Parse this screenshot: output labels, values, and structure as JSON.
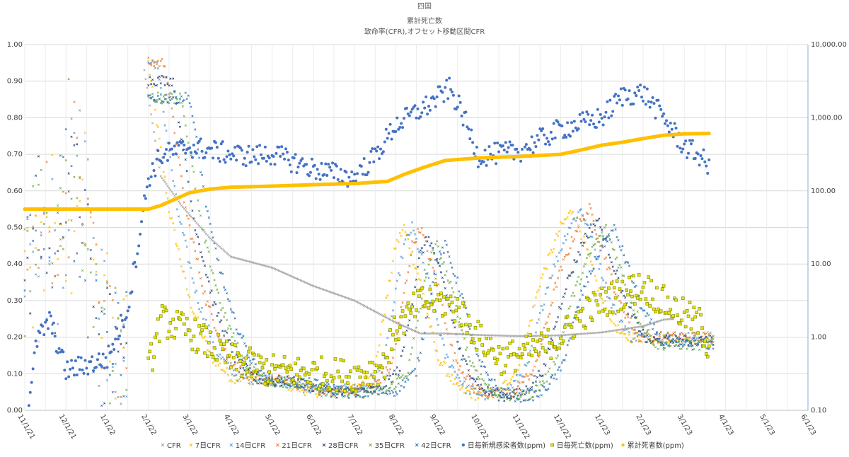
{
  "chart_data": {
    "type": "scatter",
    "title_lines": [
      "四国",
      "累計死亡数",
      "致命率(CFR),オフセット移動区間CFR"
    ],
    "x_ticks": [
      "11/1/21",
      "12/1/21",
      "1/1/22",
      "2/1/22",
      "3/1/22",
      "4/1/22",
      "5/1/22",
      "6/1/22",
      "7/1/22",
      "8/1/22",
      "9/1/22",
      "10/1/22",
      "11/1/22",
      "12/1/22",
      "1/1/23",
      "2/1/23",
      "3/1/23",
      "4/1/23",
      "5/1/23",
      "6/1/23"
    ],
    "y_left_ticks": [
      "0.00",
      "0.10",
      "0.20",
      "0.30",
      "0.40",
      "0.50",
      "0.60",
      "0.70",
      "0.80",
      "0.90",
      "1.00"
    ],
    "y_left_range": [
      0,
      1
    ],
    "y_right_ticks": [
      "0.10",
      "1.00",
      "10.00",
      "100.00",
      "1,000.00",
      "10,000.00"
    ],
    "y_right_range_log10": [
      -1,
      4
    ],
    "x_range_months": [
      0,
      19
    ],
    "legend": [
      {
        "label": "CFR",
        "color": "#a5a5a5",
        "marker": "x"
      },
      {
        "label": "7日CFR",
        "color": "#ffc000",
        "marker": "x"
      },
      {
        "label": "14日CFR",
        "color": "#5b9bd5",
        "marker": "x"
      },
      {
        "label": "21日CFR",
        "color": "#ed7d31",
        "marker": "x"
      },
      {
        "label": "28日CFR",
        "color": "#264478",
        "marker": "x"
      },
      {
        "label": "35日CFR",
        "color": "#70ad47",
        "marker": "x"
      },
      {
        "label": "42日CFR",
        "color": "#2e75b6",
        "marker": "x"
      },
      {
        "label": "日毎新規感染者数(ppm)",
        "color": "#4472c4",
        "marker": "dot"
      },
      {
        "label": "日毎死亡数(ppm)",
        "color": "#c9d200",
        "marker": "square"
      },
      {
        "label": "累計死者数(ppm)",
        "color": "#ffc000",
        "marker": "dot-large"
      }
    ],
    "series_points": {
      "CFR": [
        [
          2.9,
          0.93
        ],
        [
          3.3,
          0.64
        ],
        [
          3.8,
          0.56
        ],
        [
          4.5,
          0.47
        ],
        [
          5.0,
          0.42
        ],
        [
          6.0,
          0.39
        ],
        [
          7.0,
          0.34
        ],
        [
          8.0,
          0.3
        ],
        [
          9.0,
          0.24
        ],
        [
          9.6,
          0.21
        ],
        [
          10.2,
          0.21
        ],
        [
          11.0,
          0.206
        ],
        [
          12.0,
          0.203
        ],
        [
          13.0,
          0.205
        ],
        [
          14.0,
          0.213
        ],
        [
          15.0,
          0.23
        ],
        [
          15.5,
          0.248
        ],
        [
          15.75,
          0.25
        ]
      ],
      "日毎新規感染者数(ppm)": [
        [
          0.1,
          0.15
        ],
        [
          0.3,
          0.9
        ],
        [
          0.6,
          1.7
        ],
        [
          1.0,
          0.35
        ],
        [
          2.0,
          0.5
        ],
        [
          2.5,
          2.5
        ],
        [
          3.0,
          150
        ],
        [
          3.3,
          300
        ],
        [
          4.0,
          400
        ],
        [
          5.0,
          320
        ],
        [
          5.5,
          300
        ],
        [
          6.0,
          320
        ],
        [
          7.0,
          200
        ],
        [
          8.0,
          150
        ],
        [
          8.5,
          300
        ],
        [
          9.0,
          800
        ],
        [
          9.8,
          1500
        ],
        [
          10.3,
          2500
        ],
        [
          10.6,
          1200
        ],
        [
          11.0,
          300
        ],
        [
          12.0,
          350
        ],
        [
          12.5,
          500
        ],
        [
          13.0,
          700
        ],
        [
          14.0,
          1000
        ],
        [
          14.5,
          2000
        ],
        [
          15.0,
          2200
        ],
        [
          15.5,
          1000
        ],
        [
          16.0,
          400
        ],
        [
          16.4,
          300
        ],
        [
          16.6,
          200
        ]
      ],
      "日毎死亡数(ppm)": [
        [
          3.0,
          0.35
        ],
        [
          3.3,
          1.7
        ],
        [
          4.0,
          1.2
        ],
        [
          5.0,
          0.5
        ],
        [
          6.0,
          0.35
        ],
        [
          7.0,
          0.33
        ],
        [
          8.0,
          0.3
        ],
        [
          8.7,
          0.4
        ],
        [
          9.0,
          1.3
        ],
        [
          9.6,
          3.0
        ],
        [
          10.0,
          3.2
        ],
        [
          10.5,
          2.5
        ],
        [
          11.0,
          1.0
        ],
        [
          11.6,
          0.5
        ],
        [
          12.0,
          0.6
        ],
        [
          12.5,
          0.7
        ],
        [
          13.0,
          1.0
        ],
        [
          13.6,
          2.2
        ],
        [
          14.0,
          3.0
        ],
        [
          14.5,
          4.0
        ],
        [
          15.0,
          5.0
        ],
        [
          15.5,
          3.0
        ],
        [
          16.0,
          2.0
        ],
        [
          16.4,
          1.5
        ],
        [
          16.6,
          0.7
        ]
      ],
      "累計死者数(ppm)": [
        [
          0,
          0.55
        ],
        [
          1,
          0.55
        ],
        [
          2,
          0.55
        ],
        [
          3,
          0.55
        ],
        [
          3.3,
          0.56
        ],
        [
          4.0,
          0.595
        ],
        [
          4.5,
          0.605
        ],
        [
          5.0,
          0.61
        ],
        [
          6.0,
          0.613
        ],
        [
          7.0,
          0.617
        ],
        [
          8.0,
          0.62
        ],
        [
          8.8,
          0.626
        ],
        [
          9.2,
          0.645
        ],
        [
          9.7,
          0.665
        ],
        [
          10.2,
          0.683
        ],
        [
          11.0,
          0.69
        ],
        [
          12.0,
          0.694
        ],
        [
          13.0,
          0.7
        ],
        [
          13.5,
          0.712
        ],
        [
          14.0,
          0.725
        ],
        [
          14.5,
          0.733
        ],
        [
          15.0,
          0.743
        ],
        [
          15.5,
          0.752
        ],
        [
          16.0,
          0.756
        ],
        [
          16.6,
          0.757
        ]
      ]
    }
  }
}
